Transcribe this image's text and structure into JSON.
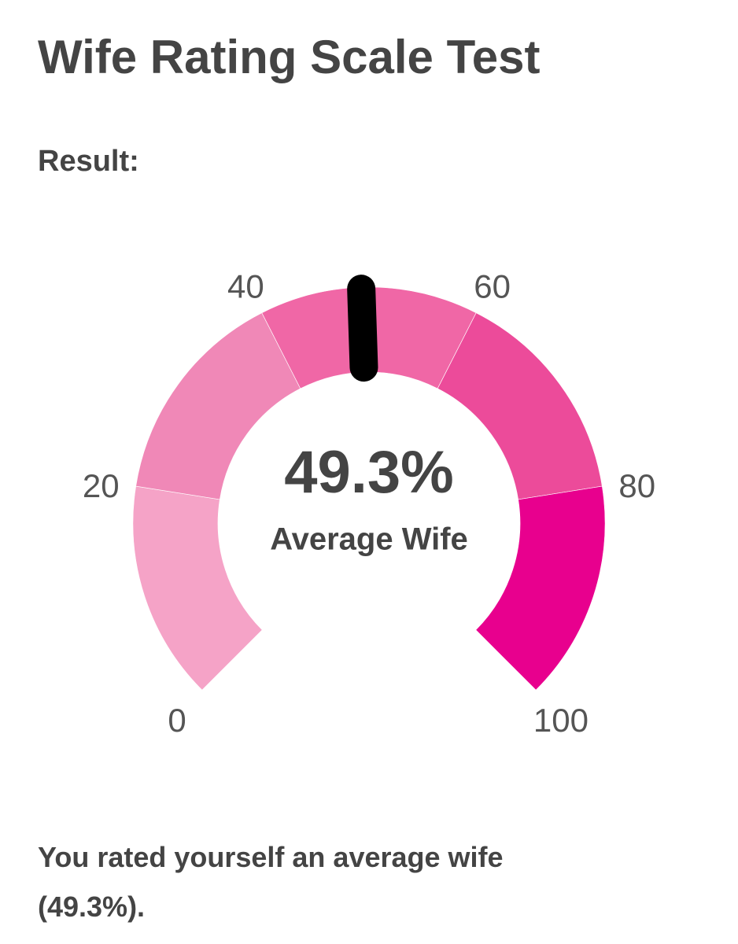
{
  "title": "Wife Rating Scale Test",
  "result_label": "Result:",
  "chart_data": {
    "type": "gauge",
    "value": 49.3,
    "value_label": "49.3%",
    "label": "Average Wife",
    "range": [
      0,
      100
    ],
    "ticks": [
      0,
      20,
      40,
      60,
      80,
      100
    ],
    "band_colors": [
      "#f5a3c7",
      "#f088b7",
      "#f067a6",
      "#ec4b9a",
      "#e8008e"
    ],
    "needle_color": "#000000"
  },
  "summary": "You rated yourself an average wife (49.3%)."
}
